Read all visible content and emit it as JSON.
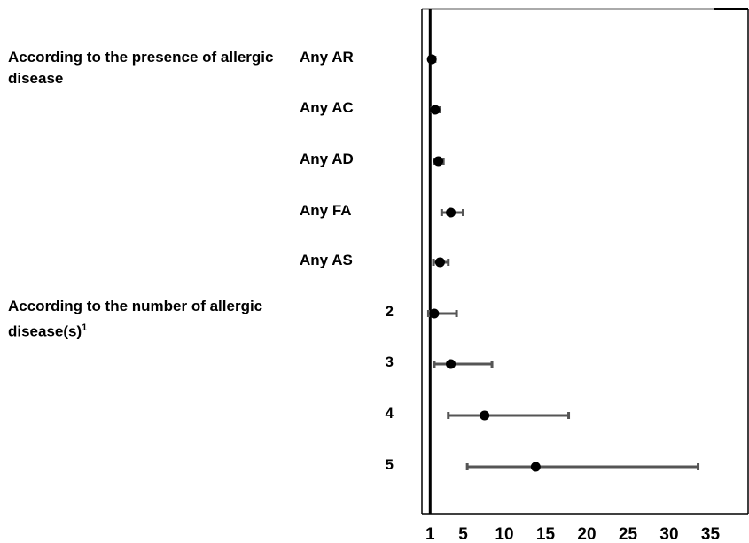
{
  "chart_data": {
    "type": "forest",
    "groups": [
      {
        "title": "According to the presence of allergic disease"
      },
      {
        "title": "According to the number of allergic disease(s)",
        "superscript": "1"
      }
    ],
    "rows": [
      {
        "label": "Any AR",
        "estimate": 1.2,
        "lower": 1.0,
        "upper": 1.6,
        "group": 0
      },
      {
        "label": "Any AC",
        "estimate": 1.6,
        "lower": 1.2,
        "upper": 2.1,
        "group": 0
      },
      {
        "label": "Any AD",
        "estimate": 2.0,
        "lower": 1.5,
        "upper": 2.6,
        "group": 0
      },
      {
        "label": "Any FA",
        "estimate": 3.5,
        "lower": 2.4,
        "upper": 5.0,
        "group": 0
      },
      {
        "label": "Any AS",
        "estimate": 2.2,
        "lower": 1.4,
        "upper": 3.2,
        "group": 0
      },
      {
        "label": "2",
        "estimate": 1.5,
        "lower": 0.8,
        "upper": 4.2,
        "group": 1
      },
      {
        "label": "3",
        "estimate": 3.5,
        "lower": 1.5,
        "upper": 8.5,
        "group": 1
      },
      {
        "label": "4",
        "estimate": 7.6,
        "lower": 3.2,
        "upper": 17.8,
        "group": 1
      },
      {
        "label": "5",
        "estimate": 13.8,
        "lower": 5.5,
        "upper": 33.5,
        "group": 1
      }
    ],
    "xticks": [
      1,
      5,
      10,
      15,
      20,
      25,
      30,
      35
    ],
    "xtick_labels": [
      "1",
      "5",
      "10",
      "15",
      "20",
      "25",
      "30",
      "35"
    ],
    "xlim": [
      0,
      35.5
    ],
    "reference_line": 1,
    "colors": {
      "whisker": "#555555",
      "point": "#000000",
      "axis": "#000000"
    }
  }
}
